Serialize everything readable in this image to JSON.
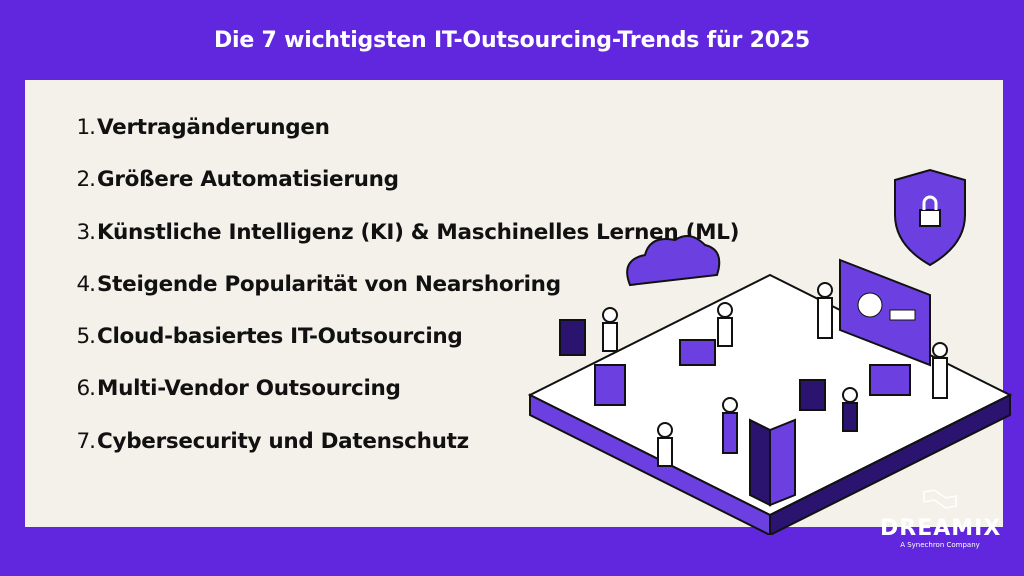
{
  "title": "Die 7 wichtigsten IT-Outsourcing-Trends für 2025",
  "trends": [
    {
      "num": "1.",
      "label": "Vertragänderungen"
    },
    {
      "num": "2.",
      "label": "Größere Automatisierung"
    },
    {
      "num": "3.",
      "label": "Künstliche Intelligenz (KI) & Maschinelles Lernen (ML)"
    },
    {
      "num": "4.",
      "label": "Steigende Popularität von Nearshoring"
    },
    {
      "num": "5.",
      "label": "Cloud-basiertes IT-Outsourcing"
    },
    {
      "num": "6.",
      "label": "Multi-Vendor Outsourcing"
    },
    {
      "num": "7.",
      "label": "Cybersecurity und Datenschutz"
    }
  ],
  "logo": {
    "word": "DREAMIX",
    "tagline": "A Synechron Company"
  },
  "colors": {
    "background": "#6127de",
    "panel": "#f4f1ea",
    "text": "#111111",
    "accent": "#6b3fe0"
  }
}
